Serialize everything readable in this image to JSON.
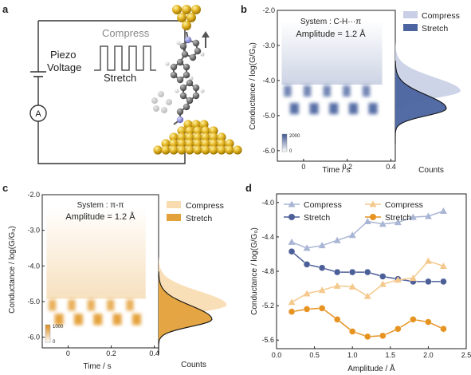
{
  "panels": {
    "a": {
      "label": "a",
      "piezo": [
        "Piezo",
        "Voltage"
      ],
      "compress": "Compress",
      "stretch": "Stretch",
      "ammeter": "A",
      "colors": {
        "gold": "#d8aa10",
        "carbon": "#6e6e6e",
        "nitrogen": "#8a8ad0",
        "hydrogen": "#e6e6e6",
        "wire": "#333333"
      }
    },
    "b": {
      "label": "b",
      "system": "System : C-H···π",
      "amplitude": "Amplitude = 1.2 Å",
      "colorbar": {
        "max": "2000",
        "min": "0"
      },
      "hist_xlabel": "Counts",
      "colors": {
        "compress": "#c9cfe6",
        "stretch": "#4b64a0",
        "heat": "#4b64a0"
      }
    },
    "c": {
      "label": "c",
      "system": "System : π-π",
      "amplitude": "Amplitude = 1.2 Å",
      "colorbar": {
        "max": "1000",
        "min": "0"
      },
      "hist_xlabel": "Counts",
      "colors": {
        "compress": "#f8dcb0",
        "stretch": "#e3a13b",
        "heat": "#e39a2b"
      }
    },
    "d": {
      "label": "d",
      "colors": {
        "ch_compress": "#a9b5d4",
        "ch_stretch": "#4c5f98",
        "pp_compress": "#f5c98d",
        "pp_stretch": "#e69322"
      }
    }
  },
  "chart_data": [
    {
      "type": "heatmap",
      "panel": "b",
      "ylabel": "Conductance / log(G/G₀)",
      "xlabel": "Time / s",
      "xlim": [
        -0.12,
        0.42
      ],
      "ylim": [
        -6.3,
        -2.0
      ],
      "xticks": [
        "0",
        "0.2",
        "0.4"
      ],
      "yticks": [
        "-2.0",
        "-3.0",
        "-4.0",
        "-5.0",
        "-6.0"
      ],
      "levels": {
        "compress": -4.3,
        "stretch": -4.8
      },
      "cycles": 5,
      "histogram": {
        "series": [
          {
            "name": "Compress",
            "peak": -4.3
          },
          {
            "name": "Stretch",
            "peak": -4.8
          }
        ]
      }
    },
    {
      "type": "heatmap",
      "panel": "c",
      "ylabel": "Conductance / log(G/G₀)",
      "xlabel": "Time / s",
      "xlim": [
        -0.12,
        0.42
      ],
      "ylim": [
        -6.3,
        -2.0
      ],
      "xticks": [
        "0",
        "0.2",
        "0.4"
      ],
      "yticks": [
        "-2.0",
        "-3.0",
        "-4.0",
        "-5.0",
        "-6.0"
      ],
      "levels": {
        "compress": -5.1,
        "stretch": -5.5
      },
      "cycles": 5,
      "histogram": {
        "series": [
          {
            "name": "Compress",
            "peak": -5.1
          },
          {
            "name": "Stretch",
            "peak": -5.5
          }
        ]
      }
    },
    {
      "type": "line",
      "panel": "d",
      "xlabel": "Amplitude / Å",
      "ylabel": "Conductance / log(G/G₀)",
      "xlim": [
        0.0,
        2.5
      ],
      "ylim": [
        -5.7,
        -3.9
      ],
      "xticks": [
        "0.0",
        "0.5",
        "1.0",
        "1.5",
        "2.0",
        "2.5"
      ],
      "yticks": [
        "-4.0",
        "-4.4",
        "-4.8",
        "-5.2",
        "-5.6"
      ],
      "x": [
        0.2,
        0.4,
        0.6,
        0.8,
        1.0,
        1.2,
        1.4,
        1.6,
        1.8,
        2.0,
        2.2
      ],
      "series": [
        {
          "name": "Compress",
          "marker": "triangle",
          "color": "#a9b5d4",
          "values": [
            -4.46,
            -4.53,
            -4.5,
            -4.44,
            -4.38,
            -4.22,
            -4.25,
            -4.23,
            -4.17,
            -4.16,
            -4.1
          ]
        },
        {
          "name": "Stretch",
          "marker": "circle",
          "color": "#4c5f98",
          "values": [
            -4.57,
            -4.72,
            -4.76,
            -4.81,
            -4.81,
            -4.81,
            -4.86,
            -4.89,
            -4.92,
            -4.92,
            -4.92
          ]
        },
        {
          "name": "Compress",
          "marker": "triangle",
          "color": "#f5c98d",
          "values": [
            -5.16,
            -5.06,
            -5.02,
            -4.97,
            -4.98,
            -5.09,
            -4.95,
            -4.9,
            -4.88,
            -4.68,
            -4.74
          ]
        },
        {
          "name": "Stretch",
          "marker": "circle",
          "color": "#e69322",
          "values": [
            -5.27,
            -5.24,
            -5.23,
            -5.36,
            -5.5,
            -5.56,
            -5.55,
            -5.47,
            -5.36,
            -5.39,
            -5.47
          ]
        }
      ]
    }
  ]
}
